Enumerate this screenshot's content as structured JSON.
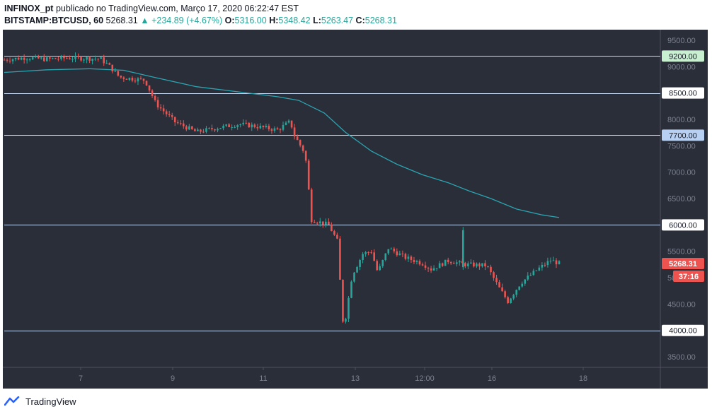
{
  "header": {
    "publisher": "INFINOX_pt",
    "published_text": "publicado no TradingView.com, Março 17, 2020 06:22:47 EST",
    "symbol": "BITSTAMP:BTCUSD, 60",
    "last": "5268.31",
    "change": "▲ +234.89 (+4.67%)",
    "o_label": "O:",
    "o": "5316.00",
    "h_label": "H:",
    "h": "5348.42",
    "l_label": "L:",
    "l": "5263.47",
    "c_label": "C:",
    "c": "5268.31"
  },
  "footer": {
    "brand": "TradingView"
  },
  "colors": {
    "background": "#2a2e39",
    "up": "#26a69a",
    "down": "#ef5350",
    "ma": "#2aa4b1",
    "level_line": "#c8dcf8",
    "label_green": "#c7efd0",
    "label_blue": "#b8d1f3",
    "label_price": "#ef5350"
  },
  "chart_data": {
    "type": "candlestick",
    "title": "",
    "xlabel": "",
    "ylabel": "",
    "ylim": [
      3300,
      9700
    ],
    "y_ticks": [
      "3500.00",
      "4000.00",
      "4500.00",
      "5000.00",
      "5500.00",
      "6000.00",
      "6500.00",
      "7000.00",
      "7500.00",
      "8000.00",
      "8500.00",
      "9000.00",
      "9500.00"
    ],
    "x_ticks": [
      "7",
      "9",
      "11",
      "13",
      "12:00",
      "16",
      "18"
    ],
    "levels": [
      {
        "value": 9200,
        "label": "9200.00",
        "style": "green"
      },
      {
        "value": 8500,
        "label": "8500.00",
        "style": "plain"
      },
      {
        "value": 7700,
        "label": "7700.00",
        "style": "blue"
      },
      {
        "value": 6000,
        "label": "6000.00",
        "style": "plain"
      },
      {
        "value": 4000,
        "label": "4000.00",
        "style": "plain"
      }
    ],
    "last_price_label": "5268.31",
    "countdown_label": "37:16",
    "price_path_anchors": [
      {
        "x": 0.0,
        "y": 9130
      },
      {
        "x": 0.5,
        "y": 9170
      },
      {
        "x": 1.0,
        "y": 9140
      },
      {
        "x": 1.5,
        "y": 9165
      },
      {
        "x": 2.25,
        "y": 9150
      },
      {
        "x": 2.45,
        "y": 9020
      },
      {
        "x": 2.7,
        "y": 8800
      },
      {
        "x": 3.3,
        "y": 8740
      },
      {
        "x": 3.55,
        "y": 8300
      },
      {
        "x": 4.0,
        "y": 7950
      },
      {
        "x": 4.5,
        "y": 7760
      },
      {
        "x": 5.0,
        "y": 7840
      },
      {
        "x": 5.5,
        "y": 7910
      },
      {
        "x": 5.8,
        "y": 7880
      },
      {
        "x": 6.4,
        "y": 7800
      },
      {
        "x": 6.7,
        "y": 7960
      },
      {
        "x": 6.8,
        "y": 7690
      },
      {
        "x": 7.05,
        "y": 7350
      },
      {
        "x": 7.2,
        "y": 6100
      },
      {
        "x": 7.6,
        "y": 6000
      },
      {
        "x": 7.8,
        "y": 5700
      },
      {
        "x": 7.95,
        "y": 4000
      },
      {
        "x": 8.15,
        "y": 5050
      },
      {
        "x": 8.4,
        "y": 5450
      },
      {
        "x": 8.6,
        "y": 5500
      },
      {
        "x": 8.75,
        "y": 5100
      },
      {
        "x": 9.0,
        "y": 5560
      },
      {
        "x": 9.4,
        "y": 5380
      },
      {
        "x": 9.8,
        "y": 5270
      },
      {
        "x": 10.0,
        "y": 5160
      },
      {
        "x": 10.4,
        "y": 5320
      },
      {
        "x": 10.8,
        "y": 5250
      },
      {
        "x": 11.3,
        "y": 5230
      },
      {
        "x": 11.6,
        "y": 4800
      },
      {
        "x": 11.8,
        "y": 4550
      },
      {
        "x": 12.1,
        "y": 4900
      },
      {
        "x": 12.5,
        "y": 5160
      },
      {
        "x": 12.8,
        "y": 5330
      },
      {
        "x": 13.0,
        "y": 5270
      }
    ],
    "spike_candles": [
      {
        "x": 10.75,
        "open": 5200,
        "high": 5960,
        "low": 5150,
        "close": 5900
      }
    ],
    "ma_line": [
      {
        "x": 0.0,
        "y": 8890
      },
      {
        "x": 1.0,
        "y": 8940
      },
      {
        "x": 2.0,
        "y": 8960
      },
      {
        "x": 2.8,
        "y": 8930
      },
      {
        "x": 3.5,
        "y": 8800
      },
      {
        "x": 4.5,
        "y": 8620
      },
      {
        "x": 5.5,
        "y": 8520
      },
      {
        "x": 6.4,
        "y": 8430
      },
      {
        "x": 6.9,
        "y": 8360
      },
      {
        "x": 7.5,
        "y": 8120
      },
      {
        "x": 8.0,
        "y": 7750
      },
      {
        "x": 8.6,
        "y": 7400
      },
      {
        "x": 9.2,
        "y": 7150
      },
      {
        "x": 9.8,
        "y": 6950
      },
      {
        "x": 10.4,
        "y": 6800
      },
      {
        "x": 10.9,
        "y": 6640
      },
      {
        "x": 11.4,
        "y": 6500
      },
      {
        "x": 12.0,
        "y": 6300
      },
      {
        "x": 12.6,
        "y": 6190
      },
      {
        "x": 13.0,
        "y": 6140
      }
    ]
  }
}
